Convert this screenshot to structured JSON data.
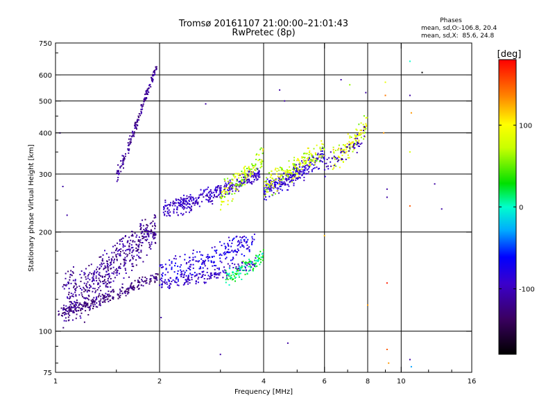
{
  "chart_data": {
    "type": "scatter",
    "title": "Tromsø 20161107 21:00:00–21:01:43",
    "subtitle": "RwPretec (8p)",
    "stats": {
      "heading": "Phases",
      "line1": "mean, sd,O:-106.8, 20.4",
      "line2": "mean, sd,X:  85.6, 24.8"
    },
    "xlabel": "Frequency [MHz]",
    "ylabel": "Stationary phase Virtual Height [km]",
    "x_scale": "log",
    "y_scale": "log",
    "xlim": [
      1,
      16
    ],
    "ylim": [
      75,
      750
    ],
    "x_ticks": [
      1,
      2,
      4,
      6,
      8,
      10,
      16
    ],
    "x_tick_labels": [
      "1",
      "2",
      "4",
      "6",
      "8",
      "10",
      "16"
    ],
    "x_grid": [
      2,
      4,
      6,
      8,
      10
    ],
    "y_ticks": [
      75,
      100,
      200,
      300,
      400,
      500,
      600,
      750
    ],
    "y_tick_labels": [
      "75",
      "100",
      "200",
      "300",
      "400",
      "500",
      "600",
      "750"
    ],
    "y_grid": [
      100,
      200,
      300,
      400,
      500,
      600
    ],
    "grid": true,
    "colorbar": {
      "label": "[deg]",
      "range": [
        -180,
        180
      ],
      "ticks": [
        100,
        0,
        -100
      ],
      "tick_labels": [
        "100",
        "0",
        "-100"
      ],
      "placement": "right"
    },
    "clusters": [
      {
        "name": "low-trace",
        "fmin": 1.02,
        "fmax": 1.98,
        "h0": 114,
        "h1": 148,
        "spread": 6,
        "n": 260,
        "phase": [
          -140,
          -110
        ]
      },
      {
        "name": "low-cloud",
        "fmin": 1.05,
        "fmax": 1.95,
        "h0": 125,
        "h1": 205,
        "spread": 30,
        "n": 520,
        "phase": [
          -135,
          -95
        ]
      },
      {
        "name": "cusp-rise",
        "fmin": 1.5,
        "fmax": 1.97,
        "h0": 300,
        "h1": 640,
        "spread": 20,
        "n": 170,
        "phase": [
          -130,
          -100
        ]
      },
      {
        "name": "mid-trace-low",
        "fmin": 2.0,
        "fmax": 3.8,
        "h0": 140,
        "h1": 160,
        "spread": 8,
        "n": 170,
        "phase": [
          -110,
          -80
        ]
      },
      {
        "name": "mid-cloud",
        "fmin": 2.0,
        "fmax": 3.8,
        "h0": 150,
        "h1": 190,
        "spread": 18,
        "n": 230,
        "phase": [
          -100,
          -60
        ]
      },
      {
        "name": "f-trace",
        "fmin": 2.05,
        "fmax": 3.9,
        "h0": 235,
        "h1": 300,
        "spread": 18,
        "n": 380,
        "phase": [
          -110,
          -80
        ]
      },
      {
        "name": "f-cloud-yellow",
        "fmin": 3.0,
        "fmax": 4.0,
        "h0": 260,
        "h1": 340,
        "spread": 30,
        "n": 140,
        "phase": [
          40,
          110
        ]
      },
      {
        "name": "f-cloud-green",
        "fmin": 3.1,
        "fmax": 4.0,
        "h0": 145,
        "h1": 170,
        "spread": 10,
        "n": 110,
        "phase": [
          -10,
          40
        ]
      },
      {
        "name": "high-trace",
        "fmin": 4.0,
        "fmax": 6.0,
        "h0": 270,
        "h1": 340,
        "spread": 25,
        "n": 260,
        "phase": [
          -110,
          -70
        ]
      },
      {
        "name": "high-yellow",
        "fmin": 4.0,
        "fmax": 6.0,
        "h0": 280,
        "h1": 360,
        "spread": 30,
        "n": 180,
        "phase": [
          50,
          110
        ]
      },
      {
        "name": "upper-blob",
        "fmin": 6.3,
        "fmax": 8.0,
        "h0": 330,
        "h1": 430,
        "spread": 35,
        "n": 120,
        "phase": [
          50,
          120
        ]
      },
      {
        "name": "upper-blue",
        "fmin": 6.0,
        "fmax": 8.0,
        "h0": 320,
        "h1": 400,
        "spread": 30,
        "n": 60,
        "phase": [
          -120,
          -80
        ]
      }
    ],
    "isolated_points": [
      {
        "f": 1.03,
        "h": 400,
        "phase": -110
      },
      {
        "f": 1.05,
        "h": 275,
        "phase": -110
      },
      {
        "f": 1.08,
        "h": 225,
        "phase": -110
      },
      {
        "f": 2.02,
        "h": 110,
        "phase": -110
      },
      {
        "f": 2.72,
        "h": 490,
        "phase": -110
      },
      {
        "f": 4.45,
        "h": 540,
        "phase": -110
      },
      {
        "f": 4.6,
        "h": 500,
        "phase": -110
      },
      {
        "f": 4.7,
        "h": 92,
        "phase": -110
      },
      {
        "f": 6.7,
        "h": 580,
        "phase": -110
      },
      {
        "f": 7.1,
        "h": 560,
        "phase": 60
      },
      {
        "f": 7.9,
        "h": 530,
        "phase": -110
      },
      {
        "f": 9.0,
        "h": 570,
        "phase": 90
      },
      {
        "f": 9.0,
        "h": 520,
        "phase": 140
      },
      {
        "f": 8.9,
        "h": 400,
        "phase": 130
      },
      {
        "f": 9.1,
        "h": 270,
        "phase": -110
      },
      {
        "f": 9.1,
        "h": 255,
        "phase": -110
      },
      {
        "f": 8.0,
        "h": 120,
        "phase": 130
      },
      {
        "f": 9.1,
        "h": 140,
        "phase": 170
      },
      {
        "f": 9.1,
        "h": 88,
        "phase": 150
      },
      {
        "f": 10.6,
        "h": 660,
        "phase": 0
      },
      {
        "f": 10.6,
        "h": 520,
        "phase": -110
      },
      {
        "f": 10.7,
        "h": 460,
        "phase": 130
      },
      {
        "f": 10.6,
        "h": 350,
        "phase": 80
      },
      {
        "f": 10.6,
        "h": 240,
        "phase": 150
      },
      {
        "f": 10.6,
        "h": 82,
        "phase": -110
      },
      {
        "f": 10.7,
        "h": 78,
        "phase": -30
      },
      {
        "f": 11.5,
        "h": 610,
        "phase": -180
      },
      {
        "f": 12.5,
        "h": 280,
        "phase": -110
      },
      {
        "f": 13.1,
        "h": 235,
        "phase": -110
      },
      {
        "f": 6.0,
        "h": 195,
        "phase": 120
      },
      {
        "f": 3.0,
        "h": 85,
        "phase": -110
      },
      {
        "f": 9.2,
        "h": 80,
        "phase": 130
      }
    ]
  }
}
